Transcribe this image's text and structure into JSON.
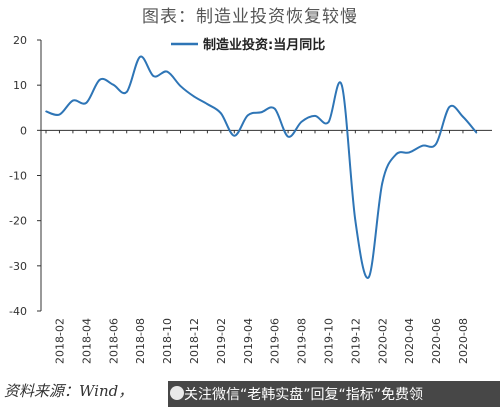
{
  "title": "图表：制造业投资恢复较慢",
  "source_text": "资料来源：Wind，",
  "banner_text": "关注微信“老韩实盘”回复“指标”免费领",
  "colors": {
    "series": "#2E75B6",
    "axis": "#333333",
    "text": "#333333"
  },
  "chart_data": {
    "type": "line",
    "legend_position": "top-center",
    "grid": false,
    "ylim": [
      -40,
      20
    ],
    "yticks": [
      20,
      10,
      0,
      -10,
      -20,
      -30,
      -40
    ],
    "xtick_labels": [
      "2018-02",
      "2018-04",
      "2018-06",
      "2018-08",
      "2018-10",
      "2018-12",
      "2019-02",
      "2019-04",
      "2019-06",
      "2019-08",
      "2019-10",
      "2019-12",
      "2020-02",
      "2020-04",
      "2020-06",
      "2020-08"
    ],
    "x": [
      "2018-01",
      "2018-02",
      "2018-03",
      "2018-04",
      "2018-05",
      "2018-06",
      "2018-07",
      "2018-08",
      "2018-09",
      "2018-10",
      "2018-11",
      "2018-12",
      "2019-01",
      "2019-02",
      "2019-03",
      "2019-04",
      "2019-05",
      "2019-06",
      "2019-07",
      "2019-08",
      "2019-09",
      "2019-10",
      "2019-11",
      "2019-12",
      "2020-01",
      "2020-02",
      "2020-03",
      "2020-04",
      "2020-05",
      "2020-06",
      "2020-07",
      "2020-08",
      "2020-09"
    ],
    "series": [
      {
        "name": "制造业投资:当月同比",
        "values": [
          4.2,
          3.5,
          6.6,
          6.1,
          11.2,
          10.1,
          8.5,
          16.3,
          12.0,
          13.0,
          9.8,
          7.5,
          5.8,
          3.8,
          -1.2,
          3.3,
          4.0,
          4.8,
          -1.4,
          1.9,
          3.2,
          1.8,
          9.9,
          -20.0,
          -32.5,
          -11.7,
          -5.4,
          -4.9,
          -3.4,
          -3.0,
          5.2,
          3.0,
          -0.5
        ]
      }
    ]
  }
}
